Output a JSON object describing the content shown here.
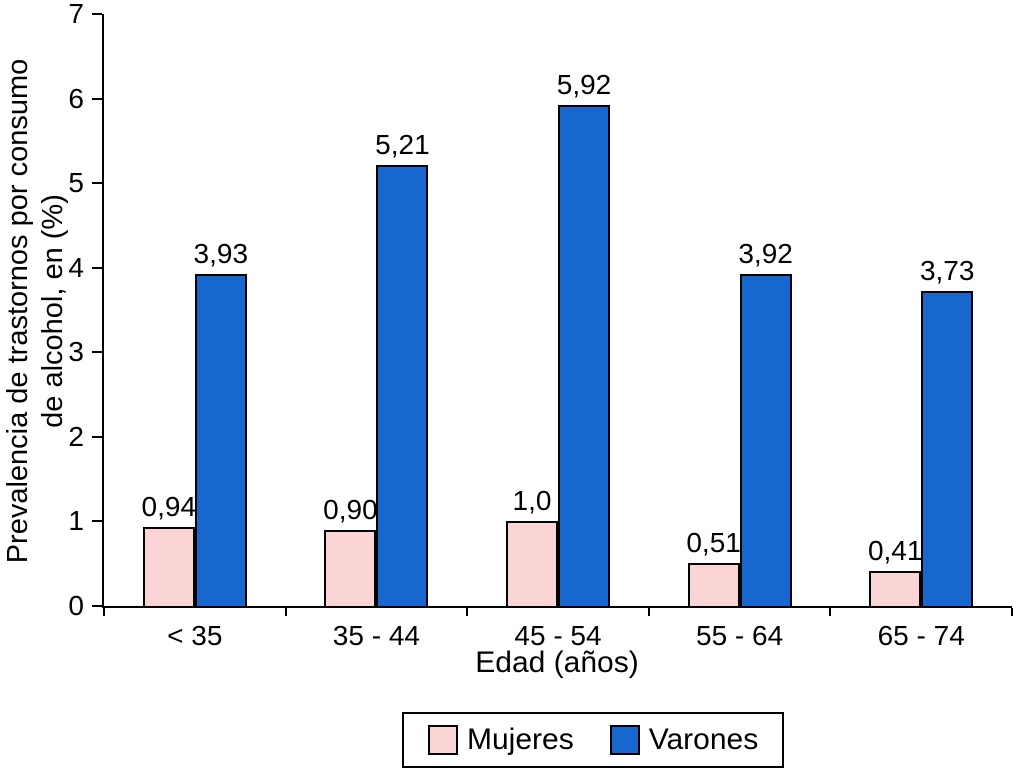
{
  "chart_data": {
    "type": "bar",
    "categories": [
      "< 35",
      "35 - 44",
      "45 - 54",
      "55 - 64",
      "65 - 74"
    ],
    "series": [
      {
        "name": "Mujeres",
        "color": "#fbd5d6",
        "values": [
          0.94,
          0.9,
          1.0,
          0.51,
          0.41
        ],
        "labels": [
          "0,94",
          "0,90",
          "1,0",
          "0,51",
          "0,41"
        ]
      },
      {
        "name": "Varones",
        "color": "#1667ce",
        "values": [
          3.93,
          5.21,
          5.92,
          3.92,
          3.73
        ],
        "labels": [
          "3,93",
          "5,21",
          "5,92",
          "3,92",
          "3,73"
        ]
      }
    ],
    "xlabel": "Edad (años)",
    "ylabel": "Prevalencia de trastornos por consumo de alcohol, en (%)",
    "ylabel_lines": [
      "Prevalencia de trastornos por consumo",
      "de alcohol, en (%)"
    ],
    "ylim": [
      0,
      7
    ],
    "ytick_step": 1,
    "ytick_labels": [
      "0",
      "1",
      "2",
      "3",
      "4",
      "5",
      "6",
      "7"
    ],
    "grid": false,
    "legend_position": "bottom",
    "bar_border_color": "#000000",
    "axis_color": "#000000"
  }
}
